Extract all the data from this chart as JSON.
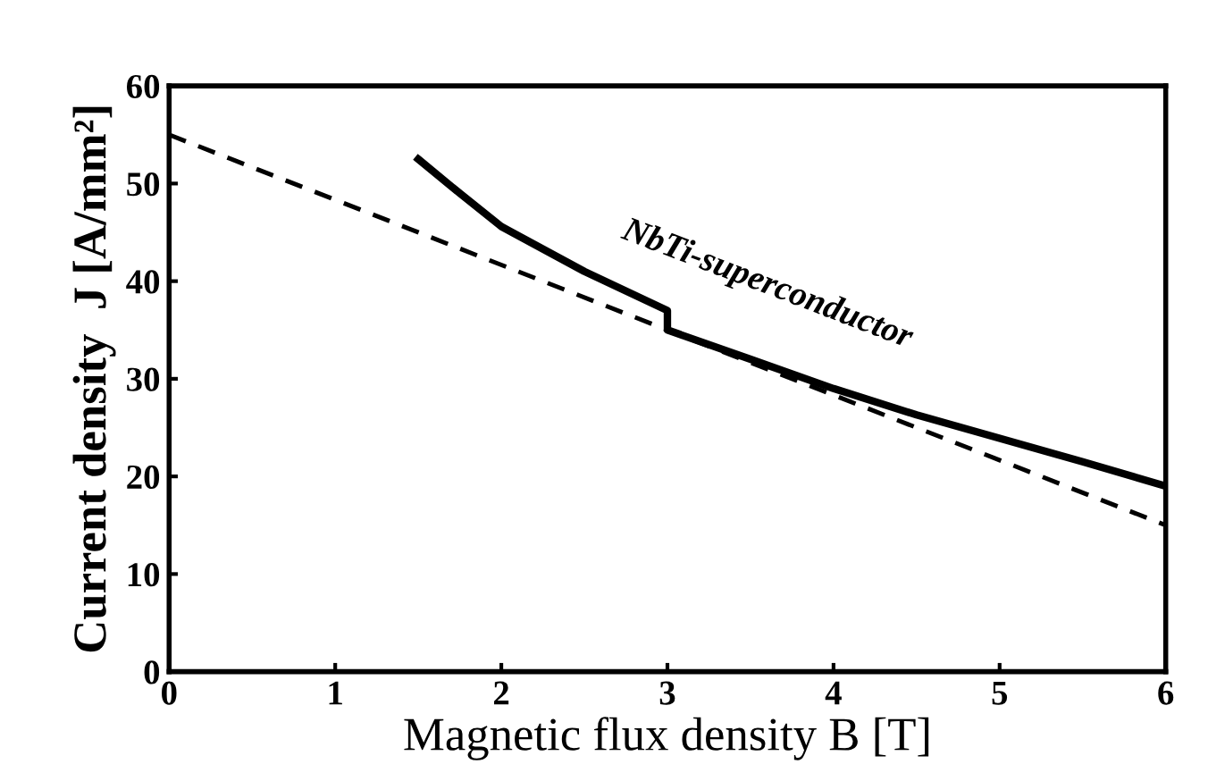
{
  "chart_data": {
    "type": "line",
    "xlabel": "Magnetic flux density B [T]",
    "ylabel": "Current density  J [A/mm²]",
    "xlim": [
      0,
      6
    ],
    "ylim": [
      0,
      60
    ],
    "xticks": [
      0,
      1,
      2,
      3,
      4,
      5,
      6
    ],
    "yticks": [
      0,
      10,
      20,
      30,
      40,
      50,
      60
    ],
    "grid": false,
    "legend": false,
    "series": [
      {
        "color": "#000000",
        "line_style": "solid",
        "x": [
          1.5,
          1.75,
          2,
          2.5,
          3,
          3,
          3.5,
          4,
          4.5,
          5,
          5.5,
          6
        ],
        "values": [
          52.5,
          49,
          45.6,
          41,
          37,
          35,
          32,
          29,
          26.3,
          23.9,
          21.5,
          19
        ]
      },
      {
        "color": "#000000",
        "line_style": "dashed",
        "x": [
          0,
          6
        ],
        "values": [
          55,
          15
        ]
      }
    ],
    "annotations": [
      "NbTi-superconductor"
    ]
  }
}
